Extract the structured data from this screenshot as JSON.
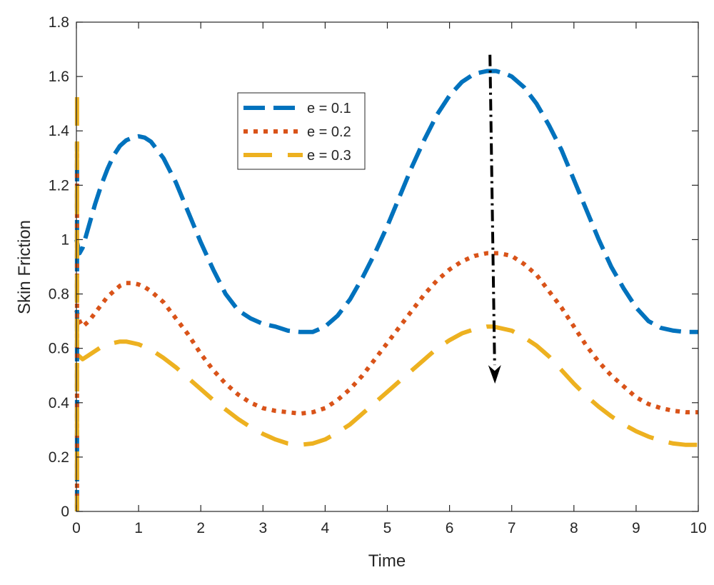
{
  "chart_data": {
    "type": "line",
    "title": "",
    "xlabel": "Time",
    "ylabel": "Skin Friction",
    "xlim": [
      0,
      10
    ],
    "ylim": [
      0,
      1.8
    ],
    "xticks": [
      0,
      1,
      2,
      3,
      4,
      5,
      6,
      7,
      8,
      9,
      10
    ],
    "yticks": [
      0,
      0.2,
      0.4,
      0.6,
      0.8,
      1,
      1.2,
      1.4,
      1.6,
      1.8
    ],
    "grid": false,
    "legend_position": "upper-center",
    "series": [
      {
        "name": "e = 0.1",
        "color": "#0072BD",
        "style": "dash",
        "x": [
          0.0,
          0.05,
          0.1,
          0.2,
          0.3,
          0.4,
          0.5,
          0.6,
          0.7,
          0.8,
          0.9,
          1.0,
          1.1,
          1.2,
          1.4,
          1.6,
          1.8,
          2.0,
          2.2,
          2.4,
          2.6,
          2.8,
          3.0,
          3.2,
          3.4,
          3.6,
          3.8,
          4.0,
          4.2,
          4.4,
          4.6,
          4.8,
          5.0,
          5.2,
          5.4,
          5.6,
          5.8,
          6.0,
          6.2,
          6.4,
          6.6,
          6.75,
          6.9,
          7.0,
          7.2,
          7.4,
          7.6,
          7.8,
          8.0,
          8.2,
          8.4,
          8.6,
          8.8,
          9.0,
          9.2,
          9.4,
          9.6,
          9.8,
          10.0
        ],
        "y": [
          1.0,
          0.95,
          0.97,
          1.05,
          1.13,
          1.2,
          1.26,
          1.31,
          1.345,
          1.365,
          1.375,
          1.38,
          1.375,
          1.36,
          1.3,
          1.21,
          1.1,
          0.99,
          0.89,
          0.8,
          0.74,
          0.71,
          0.69,
          0.68,
          0.665,
          0.66,
          0.66,
          0.68,
          0.72,
          0.78,
          0.86,
          0.95,
          1.05,
          1.16,
          1.27,
          1.37,
          1.46,
          1.53,
          1.58,
          1.61,
          1.62,
          1.62,
          1.61,
          1.6,
          1.56,
          1.5,
          1.42,
          1.33,
          1.22,
          1.11,
          1.0,
          0.9,
          0.82,
          0.75,
          0.7,
          0.675,
          0.665,
          0.66,
          0.66
        ]
      },
      {
        "name": "e = 0.2",
        "color": "#D95319",
        "style": "dot",
        "x": [
          0.0,
          0.05,
          0.1,
          0.2,
          0.3,
          0.4,
          0.5,
          0.6,
          0.7,
          0.8,
          0.9,
          1.0,
          1.1,
          1.2,
          1.4,
          1.6,
          1.8,
          2.0,
          2.2,
          2.4,
          2.6,
          2.8,
          3.0,
          3.2,
          3.4,
          3.6,
          3.8,
          4.0,
          4.2,
          4.4,
          4.6,
          4.8,
          5.0,
          5.2,
          5.4,
          5.6,
          5.8,
          6.0,
          6.2,
          6.4,
          6.6,
          6.7,
          6.8,
          7.0,
          7.2,
          7.4,
          7.6,
          7.8,
          8.0,
          8.2,
          8.4,
          8.6,
          8.8,
          9.0,
          9.2,
          9.4,
          9.6,
          9.8,
          10.0
        ],
        "y": [
          0.74,
          0.7,
          0.68,
          0.7,
          0.73,
          0.76,
          0.79,
          0.81,
          0.83,
          0.84,
          0.84,
          0.835,
          0.825,
          0.81,
          0.77,
          0.71,
          0.65,
          0.58,
          0.52,
          0.47,
          0.43,
          0.4,
          0.38,
          0.37,
          0.365,
          0.36,
          0.365,
          0.38,
          0.41,
          0.45,
          0.5,
          0.56,
          0.62,
          0.68,
          0.74,
          0.8,
          0.85,
          0.89,
          0.92,
          0.94,
          0.95,
          0.95,
          0.95,
          0.94,
          0.91,
          0.87,
          0.81,
          0.75,
          0.68,
          0.61,
          0.55,
          0.5,
          0.46,
          0.42,
          0.395,
          0.38,
          0.37,
          0.365,
          0.365
        ]
      },
      {
        "name": "e = 0.3",
        "color": "#EDB120",
        "style": "longdash",
        "x": [
          0.0,
          0.05,
          0.1,
          0.2,
          0.3,
          0.4,
          0.5,
          0.6,
          0.7,
          0.8,
          0.9,
          1.0,
          1.2,
          1.4,
          1.6,
          1.8,
          2.0,
          2.2,
          2.4,
          2.6,
          2.8,
          3.0,
          3.2,
          3.4,
          3.6,
          3.8,
          4.0,
          4.2,
          4.4,
          4.6,
          4.8,
          5.0,
          5.2,
          5.4,
          5.6,
          5.8,
          6.0,
          6.2,
          6.4,
          6.6,
          6.7,
          6.8,
          7.0,
          7.2,
          7.4,
          7.6,
          7.8,
          8.0,
          8.2,
          8.4,
          8.6,
          8.8,
          9.0,
          9.2,
          9.4,
          9.6,
          9.8,
          10.0
        ],
        "y": [
          0.58,
          0.57,
          0.56,
          0.575,
          0.59,
          0.605,
          0.615,
          0.62,
          0.625,
          0.625,
          0.62,
          0.615,
          0.595,
          0.565,
          0.53,
          0.49,
          0.45,
          0.41,
          0.375,
          0.34,
          0.31,
          0.285,
          0.265,
          0.25,
          0.245,
          0.25,
          0.265,
          0.29,
          0.32,
          0.36,
          0.4,
          0.44,
          0.48,
          0.52,
          0.56,
          0.6,
          0.63,
          0.655,
          0.67,
          0.68,
          0.68,
          0.675,
          0.665,
          0.64,
          0.61,
          0.57,
          0.52,
          0.47,
          0.425,
          0.385,
          0.35,
          0.32,
          0.295,
          0.275,
          0.26,
          0.25,
          0.245,
          0.245
        ]
      }
    ],
    "annotations": [
      {
        "type": "arrow",
        "style": "dash-dot",
        "color": "#000000",
        "from": [
          6.65,
          1.68
        ],
        "to": [
          6.73,
          0.47
        ]
      }
    ]
  }
}
